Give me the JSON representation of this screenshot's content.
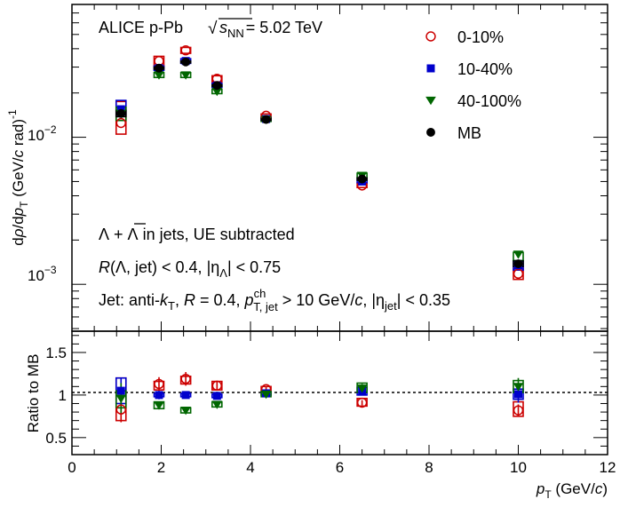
{
  "chart_data": {
    "type": "scatter",
    "x_values": [
      1.1,
      1.95,
      2.55,
      3.25,
      4.35,
      6.5,
      10.0
    ],
    "upper": {
      "ylabel": "dρ/dp_T (GeV/c rad)^-1",
      "yscale": "log",
      "ylim": [
        0.00048,
        0.08
      ],
      "yticks": [
        {
          "value": 0.01,
          "label": "10^-2"
        },
        {
          "value": 0.001,
          "label": "10^-3"
        }
      ],
      "series": [
        {
          "name": "0-10%",
          "color": "#cc0000",
          "marker": "open-circle",
          "values": [
            0.0125,
            0.033,
            0.039,
            0.025,
            0.014,
            0.0047,
            0.00118
          ],
          "sys_lo": [
            0.0105,
            0.0305,
            0.0372,
            0.0238,
            0.0135,
            0.00455,
            0.00108
          ],
          "sys_hi": [
            0.0175,
            0.0355,
            0.0408,
            0.0262,
            0.0144,
            0.0049,
            0.00128
          ]
        },
        {
          "name": "10-40%",
          "color": "#0000cc",
          "marker": "filled-square",
          "values": [
            0.0155,
            0.0295,
            0.033,
            0.0225,
            0.0133,
            0.005,
            0.00135
          ],
          "sys_lo": [
            0.0142,
            0.0285,
            0.0318,
            0.0218,
            0.013,
            0.0049,
            0.00125
          ],
          "sys_hi": [
            0.0178,
            0.0305,
            0.0342,
            0.0233,
            0.0137,
            0.0052,
            0.00145
          ]
        },
        {
          "name": "40-100%",
          "color": "#006600",
          "marker": "filled-triangle-down",
          "values": [
            0.0145,
            0.0265,
            0.0265,
            0.0205,
            0.0132,
            0.0055,
            0.0016
          ],
          "sys_lo": [
            0.013,
            0.0255,
            0.0255,
            0.0198,
            0.0128,
            0.0053,
            0.00145
          ],
          "sys_hi": [
            0.016,
            0.0275,
            0.0275,
            0.0212,
            0.0136,
            0.0057,
            0.00165
          ]
        },
        {
          "name": "MB",
          "color": "#000000",
          "marker": "filled-circle",
          "values": [
            0.0145,
            0.0295,
            0.0325,
            0.0225,
            0.0132,
            0.0052,
            0.00138
          ],
          "sys_lo": [
            0.0138,
            0.029,
            0.032,
            0.0222,
            0.013,
            0.0051,
            0.00132
          ],
          "sys_hi": [
            0.0152,
            0.03,
            0.033,
            0.0228,
            0.0134,
            0.0053,
            0.00144
          ]
        }
      ]
    },
    "lower": {
      "ylabel": "Ratio to MB",
      "ylim": [
        0.3,
        1.75
      ],
      "yticks": [
        {
          "value": 0.5,
          "label": "0.5"
        },
        {
          "value": 1,
          "label": "1"
        },
        {
          "value": 1.5,
          "label": "1.5"
        }
      ],
      "reference_line": 1,
      "series": [
        {
          "name": "0-10%",
          "color": "#cc0000",
          "marker": "open-circle",
          "values": [
            0.83,
            1.13,
            1.19,
            1.11,
            1.07,
            0.91,
            0.82
          ],
          "stat": [
            0.15,
            0.08,
            0.08,
            0.05,
            0.03,
            0.03,
            0.07
          ],
          "sys_lo": [
            0.7,
            1.06,
            1.13,
            1.06,
            1.04,
            0.87,
            0.75
          ],
          "sys_hi": [
            1.2,
            1.16,
            1.22,
            1.16,
            1.1,
            0.96,
            0.92
          ]
        },
        {
          "name": "10-40%",
          "color": "#0000cc",
          "marker": "filled-square",
          "values": [
            1.05,
            1.0,
            1.0,
            0.99,
            1.02,
            1.04,
            1.01
          ],
          "stat": [
            0.15,
            0.05,
            0.03,
            0.03,
            0.02,
            0.04,
            0.1
          ],
          "sys_lo": [
            0.9,
            0.98,
            0.98,
            0.97,
            1.0,
            1.0,
            0.95
          ],
          "sys_hi": [
            1.2,
            1.02,
            1.02,
            1.01,
            1.04,
            1.09,
            1.07
          ]
        },
        {
          "name": "40-100%",
          "color": "#006600",
          "marker": "filled-triangle-down",
          "values": [
            0.96,
            0.88,
            0.82,
            0.89,
            1.01,
            1.08,
            1.1
          ],
          "stat": [
            0.18,
            0.04,
            0.04,
            0.03,
            0.03,
            0.05,
            0.1
          ],
          "sys_lo": [
            0.85,
            0.84,
            0.79,
            0.86,
            0.98,
            1.03,
            1.03
          ],
          "sys_hi": [
            1.05,
            0.92,
            0.85,
            0.92,
            1.04,
            1.14,
            1.17
          ]
        }
      ]
    },
    "x_axis": {
      "xlim": [
        0,
        12
      ],
      "ticks": [
        0,
        2,
        4,
        6,
        8,
        10,
        12
      ],
      "xlabel": "p_T (GeV/c)"
    },
    "legend_position": "top-right"
  },
  "annotations": {
    "system": "ALICE p-Pb",
    "energy": "= 5.02 TeV",
    "sqrt_symbol": "√",
    "s_symbol": "s",
    "s_subscript": "NN",
    "line1_mid": "in jets, UE subtracted",
    "line2_lead": "R",
    "line2_a": "(Λ, jet) < 0.4, |η",
    "line2_sub": "Λ",
    "line2_b": "| < 0.75",
    "line3_a": "Jet: anti-",
    "line3_k": "k",
    "line3_ksub": "T",
    "line3_b": ", ",
    "line3_R": "R",
    "line3_c": " = 0.4, ",
    "line3_p": "p",
    "line3_sup": "ch",
    "line3_sub": "T, jet",
    "line3_d": " > 10 GeV/",
    "line3_cunit": "c",
    "line3_e": ", |η",
    "line3_sub2": "jet",
    "line3_f": "| < 0.35",
    "lambda_sym": "Λ",
    "lambdabar_sym": "Λ",
    "plus": "+"
  },
  "labels": {
    "upper_y_a": "d",
    "upper_y_rho": "ρ",
    "upper_y_b": "/d",
    "upper_y_p": "p",
    "upper_y_psub": "T",
    "upper_y_c": " (GeV/",
    "upper_y_cunit": "c",
    "upper_y_d": " rad)",
    "upper_y_exp": "-1",
    "lower_y": "Ratio to MB",
    "x_p": "p",
    "x_sub": "T",
    "x_rest": " (GeV/",
    "x_c": "c",
    "x_close": ")",
    "tick_ten": "10",
    "tick_exp_m2": "−2",
    "tick_exp_m3": "−3"
  },
  "colors": {
    "central": "#cc0000",
    "semi": "#0000cc",
    "peripheral": "#006600",
    "mb": "#000000"
  }
}
